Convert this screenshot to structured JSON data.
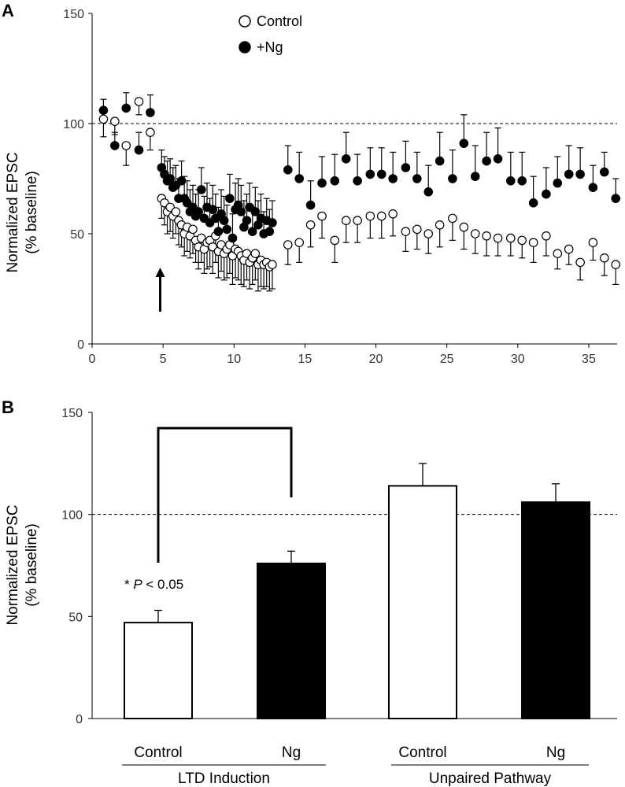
{
  "chart_data": [
    {
      "panel": "A",
      "type": "scatter",
      "ylabel_line1": "Normalized EPSC",
      "ylabel_line2": "(% baseline)",
      "xlim": [
        0,
        37
      ],
      "ylim": [
        0,
        150
      ],
      "xticks": [
        0,
        5,
        10,
        15,
        20,
        25,
        30,
        35
      ],
      "yticks": [
        0,
        50,
        100,
        150
      ],
      "reference_line": 100,
      "legend": [
        "Control",
        "+Ng"
      ],
      "series": [
        {
          "name": "Control",
          "fill": "#ffffff",
          "x": [
            0.8,
            1.6,
            2.4,
            3.3,
            4.1,
            4.9,
            5.1,
            5.3,
            5.5,
            5.7,
            5.9,
            6.1,
            6.3,
            6.5,
            6.7,
            6.9,
            7.1,
            7.3,
            7.5,
            7.7,
            7.9,
            8.1,
            8.3,
            8.5,
            8.7,
            8.9,
            9.1,
            9.3,
            9.5,
            9.7,
            9.9,
            10.1,
            10.3,
            10.5,
            10.7,
            10.9,
            11.1,
            11.3,
            11.5,
            11.7,
            11.9,
            12.1,
            12.3,
            12.5,
            12.7,
            13.8,
            14.6,
            15.4,
            16.2,
            17.1,
            17.9,
            18.7,
            19.6,
            20.4,
            21.2,
            22.1,
            22.9,
            23.7,
            24.5,
            25.4,
            26.2,
            27.0,
            27.8,
            28.6,
            29.5,
            30.3,
            31.1,
            32.0,
            32.8,
            33.6,
            34.4,
            35.3,
            36.1,
            36.9
          ],
          "y": [
            102,
            101,
            90,
            110,
            96,
            66,
            64,
            60,
            62,
            58,
            60,
            56,
            54,
            50,
            53,
            49,
            52,
            47,
            44,
            48,
            43,
            46,
            47,
            44,
            49,
            42,
            45,
            41,
            43,
            45,
            40,
            43,
            42,
            40,
            38,
            41,
            37,
            39,
            41,
            36,
            38,
            36,
            37,
            35,
            36,
            45,
            46,
            54,
            58,
            47,
            56,
            56,
            58,
            58,
            59,
            51,
            52,
            50,
            54,
            57,
            53,
            50,
            49,
            48,
            48,
            47,
            46,
            49,
            41,
            43,
            37,
            46,
            39,
            36
          ],
          "err": [
            8,
            6,
            9,
            6,
            8,
            9,
            10,
            10,
            11,
            10,
            10,
            11,
            10,
            10,
            11,
            10,
            11,
            10,
            10,
            11,
            11,
            12,
            12,
            12,
            12,
            12,
            12,
            12,
            13,
            13,
            13,
            13,
            13,
            13,
            12,
            12,
            12,
            12,
            12,
            12,
            12,
            11,
            11,
            11,
            11,
            9,
            9,
            10,
            10,
            10,
            10,
            10,
            10,
            10,
            10,
            9,
            9,
            9,
            10,
            10,
            10,
            9,
            9,
            8,
            8,
            8,
            9,
            9,
            7,
            7,
            8,
            8,
            8,
            9
          ]
        },
        {
          "name": "+Ng",
          "fill": "#000000",
          "x": [
            0.8,
            1.6,
            2.4,
            3.3,
            4.1,
            4.9,
            5.1,
            5.3,
            5.5,
            5.7,
            5.9,
            6.1,
            6.3,
            6.5,
            6.7,
            6.9,
            7.1,
            7.3,
            7.5,
            7.7,
            7.9,
            8.1,
            8.3,
            8.5,
            8.7,
            8.9,
            9.1,
            9.3,
            9.5,
            9.7,
            9.9,
            10.1,
            10.3,
            10.5,
            10.7,
            10.9,
            11.1,
            11.3,
            11.5,
            11.7,
            11.9,
            12.1,
            12.3,
            12.5,
            12.7,
            13.8,
            14.6,
            15.4,
            16.2,
            17.1,
            17.9,
            18.7,
            19.6,
            20.4,
            21.2,
            22.1,
            22.9,
            23.7,
            24.5,
            25.4,
            26.2,
            27.0,
            27.8,
            28.6,
            29.5,
            30.3,
            31.1,
            32.0,
            32.8,
            33.6,
            34.4,
            35.3,
            36.1,
            36.9
          ],
          "y": [
            106,
            90,
            107,
            88,
            105,
            80,
            77,
            74,
            75,
            71,
            72,
            66,
            74,
            66,
            64,
            60,
            62,
            58,
            60,
            70,
            57,
            62,
            55,
            61,
            57,
            51,
            59,
            56,
            52,
            66,
            48,
            61,
            63,
            60,
            53,
            56,
            62,
            51,
            60,
            54,
            57,
            50,
            56,
            51,
            55,
            79,
            75,
            63,
            73,
            74,
            84,
            74,
            77,
            77,
            75,
            80,
            75,
            69,
            83,
            75,
            91,
            76,
            83,
            84,
            74,
            74,
            64,
            68,
            73,
            77,
            77,
            71,
            78,
            66
          ],
          "err": [
            5,
            6,
            7,
            8,
            8,
            8,
            8,
            9,
            9,
            9,
            9,
            9,
            9,
            10,
            10,
            10,
            10,
            10,
            10,
            10,
            10,
            11,
            11,
            11,
            11,
            11,
            11,
            11,
            11,
            11,
            11,
            12,
            12,
            12,
            12,
            12,
            11,
            11,
            11,
            11,
            11,
            10,
            10,
            10,
            10,
            11,
            12,
            11,
            12,
            12,
            12,
            12,
            12,
            12,
            12,
            12,
            12,
            12,
            13,
            13,
            13,
            14,
            13,
            14,
            13,
            13,
            12,
            12,
            12,
            13,
            12,
            10,
            9,
            9
          ]
        }
      ],
      "arrow_at_x": 4.8
    },
    {
      "panel": "B",
      "type": "bar",
      "ylabel_line1": "Normalized EPSC",
      "ylabel_line2": "(% baseline)",
      "ylim": [
        0,
        150
      ],
      "yticks": [
        0,
        50,
        100,
        150
      ],
      "reference_line": 100,
      "categories": [
        "Control",
        "Ng",
        "Control",
        "Ng"
      ],
      "values": [
        47,
        76,
        114,
        106
      ],
      "errors": [
        6,
        6,
        11,
        9
      ],
      "fills": [
        "#ffffff",
        "#000000",
        "#ffffff",
        "#000000"
      ],
      "groups": [
        {
          "label": "LTD Induction",
          "members": [
            0,
            1
          ]
        },
        {
          "label": "Unpaired Pathway",
          "members": [
            2,
            3
          ]
        }
      ],
      "significance": {
        "between": [
          0,
          1
        ],
        "star": "* ",
        "p_letter": "P",
        "p_rest": " < 0.05"
      }
    }
  ]
}
